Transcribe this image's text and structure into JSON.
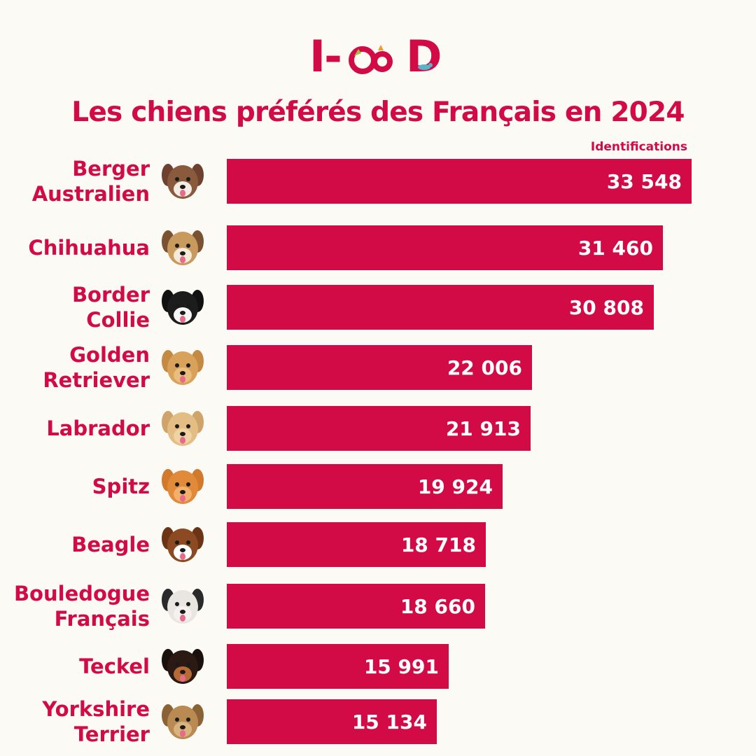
{
  "logo": {
    "text": "I-CAD",
    "left_text": "I-",
    "right_text": "D"
  },
  "chart_data": {
    "type": "bar",
    "orientation": "horizontal",
    "title": "Les chiens préférés des Français en 2024",
    "unit_label": "Identifications",
    "categories": [
      "Berger\nAustralien",
      "Chihuahua",
      "Border\nCollie",
      "Golden\nRetriever",
      "Labrador",
      "Spitz",
      "Beagle",
      "Bouledogue\nFrançais",
      "Teckel",
      "Yorkshire\nTerrier"
    ],
    "values": [
      33548,
      31460,
      30808,
      22006,
      21913,
      19924,
      18718,
      18660,
      15991,
      15134
    ],
    "value_labels": [
      "33 548",
      "31 460",
      "30 808",
      "22 006",
      "21 913",
      "19 924",
      "18 718",
      "18 660",
      "15 991",
      "15 134"
    ],
    "xlim": [
      0,
      33548
    ],
    "grid": false,
    "legend": "none",
    "bar_color": "#d20a46",
    "text_color": "#d20a46",
    "background": "#fcfaf4"
  },
  "icons": [
    "australian-shepherd-photo",
    "chihuahua-photo",
    "border-collie-photo",
    "golden-retriever-photo",
    "labrador-photo",
    "spitz-photo",
    "beagle-photo",
    "french-bulldog-photo",
    "dachshund-photo",
    "yorkshire-terrier-photo"
  ]
}
